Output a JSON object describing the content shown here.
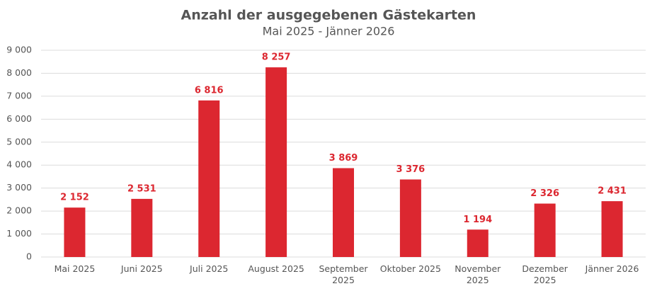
{
  "chart_data": {
    "type": "bar",
    "title": "Anzahl der ausgegebenen Gästekarten",
    "subtitle": "Mai 2025 - Jänner 2026",
    "categories": [
      "Mai 2025",
      "Juni 2025",
      "Juli 2025",
      "August 2025",
      "September 2025",
      "Oktober 2025",
      "November 2025",
      "Dezember 2025",
      "Jänner 2026"
    ],
    "values": [
      2152,
      2531,
      6816,
      8257,
      3869,
      3376,
      1194,
      2326,
      2431
    ],
    "value_labels": [
      "2 152",
      "2 531",
      "6 816",
      "8 257",
      "3 869",
      "3 376",
      "1 194",
      "2 326",
      "2 431"
    ],
    "color": "#dc2730",
    "ylim": [
      0,
      9000
    ],
    "yticks": [
      0,
      {
        "value": 1000,
        "label": "1 000"
      },
      {
        "value": 2000,
        "label": "2 000"
      },
      {
        "value": 3000,
        "label": "3 000"
      },
      {
        "value": 4000,
        "label": "4 000"
      },
      {
        "value": 5000,
        "label": "5 000"
      },
      {
        "value": 6000,
        "label": "6 000"
      },
      {
        "value": 7000,
        "label": "7 000"
      },
      {
        "value": 8000,
        "label": "8 000"
      },
      {
        "value": 9000,
        "label": "9 000"
      }
    ],
    "grid": true
  }
}
